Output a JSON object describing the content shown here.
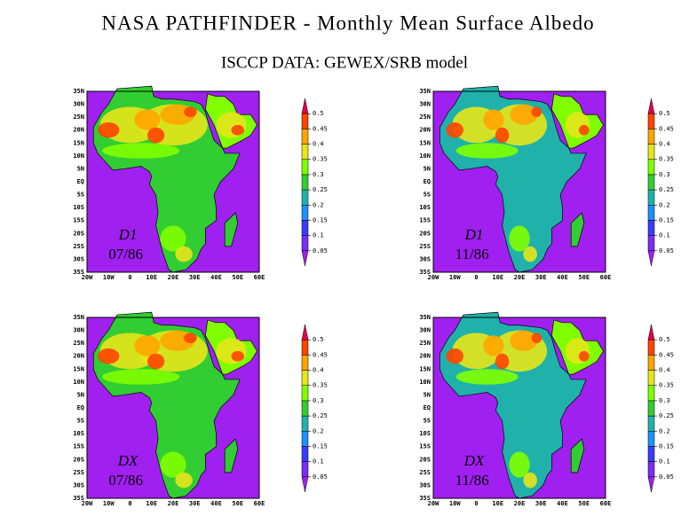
{
  "header": {
    "title": "NASA PATHFINDER - Monthly Mean Surface Albedo",
    "subtitle": "ISCCP DATA: GEWEX/SRB model"
  },
  "lat_labels": [
    "35N",
    "30N",
    "25N",
    "20N",
    "15N",
    "10N",
    "5N",
    "EQ",
    "5S",
    "10S",
    "15S",
    "20S",
    "25S",
    "30S",
    "35S"
  ],
  "lon_labels": [
    "20W",
    "10W",
    "0",
    "10E",
    "20E",
    "30E",
    "40E",
    "50E",
    "60E"
  ],
  "colorbar": {
    "ticks": [
      0.05,
      0.1,
      0.15,
      0.2,
      0.25,
      0.3,
      0.35,
      0.4,
      0.45,
      0.5
    ],
    "colors": [
      "#a020f0",
      "#7b2cf5",
      "#3c3cff",
      "#1e90ff",
      "#20b2aa",
      "#32cd32",
      "#7fff00",
      "#e6e619",
      "#ffa500",
      "#ff4500",
      "#e6004c"
    ]
  },
  "panels": [
    {
      "dataset": "D1",
      "date": "07/86"
    },
    {
      "dataset": "D1",
      "date": "11/86"
    },
    {
      "dataset": "DX",
      "date": "07/86"
    },
    {
      "dataset": "DX",
      "date": "11/86"
    }
  ]
}
